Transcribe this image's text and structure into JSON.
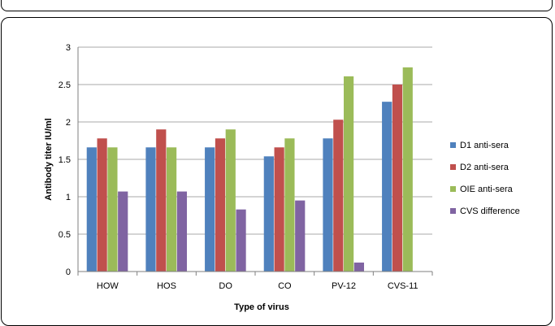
{
  "chart_data": {
    "type": "bar",
    "title": "",
    "xlabel": "Type of virus",
    "ylabel": "Antibody titer IU/ml",
    "ylim": [
      0,
      3
    ],
    "yticks": [
      "0",
      "0.5",
      "1",
      "1.5",
      "2",
      "2.5",
      "3"
    ],
    "categories": [
      "HOW",
      "HOS",
      "DO",
      "CO",
      "PV-12",
      "CVS-11"
    ],
    "grid": "horizontal",
    "legend_position": "right",
    "series": [
      {
        "name": "D1 anti-sera",
        "color": "#4F81BD",
        "values": [
          1.66,
          1.66,
          1.66,
          1.54,
          1.78,
          2.27
        ]
      },
      {
        "name": "D2 anti-sera",
        "color": "#C0504D",
        "values": [
          1.78,
          1.9,
          1.78,
          1.66,
          2.03,
          2.5
        ]
      },
      {
        "name": "OIE anti-sera",
        "color": "#9BBB59",
        "values": [
          1.66,
          1.66,
          1.9,
          1.78,
          2.61,
          2.73
        ]
      },
      {
        "name": "CVS difference",
        "color": "#8064A2",
        "values": [
          1.07,
          1.07,
          0.83,
          0.95,
          0.12,
          null
        ]
      }
    ]
  }
}
